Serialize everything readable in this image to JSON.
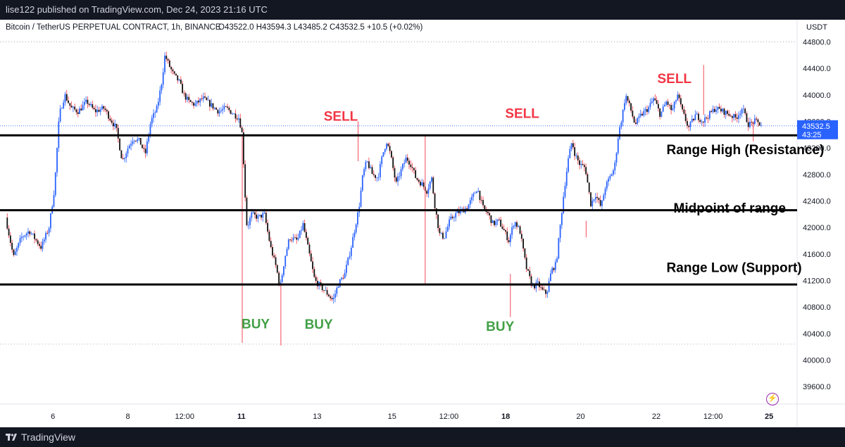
{
  "header": {
    "publish_text": "lise122 published on TradingView.com, Dec 24, 2023 21:16 UTC",
    "symbol_line": "Bitcoin / TetherUS PERPETUAL CONTRACT, 1h, BINANCE",
    "ohlc": "O43522.0  H43594.3  L43485.2  C43532.5  +10.5 (+0.02%)",
    "currency": "USDT"
  },
  "footer": {
    "brand": "TradingView"
  },
  "colors": {
    "up": "#2962ff",
    "down": "#f23645",
    "wick": "#000000",
    "buy": "#43a047",
    "sell": "#f23645",
    "line": "#000000",
    "price_tag": "#2962ff"
  },
  "chart_data": {
    "type": "candlestick",
    "title": "Bitcoin / TetherUS PERPETUAL CONTRACT, 1h, BINANCE",
    "ylim": [
      39400,
      44900
    ],
    "yticks": [
      39600,
      40000,
      40400,
      40800,
      41200,
      41600,
      42000,
      42400,
      42800,
      43200,
      43600,
      44000,
      44400,
      44800
    ],
    "ytick_labels": [
      "39600.0",
      "40000.0",
      "40400.0",
      "40800.0",
      "41200.0",
      "41600.0",
      "42000.0",
      "42400.0",
      "42800.0",
      "43200.0",
      "43600.0",
      "44000.0",
      "44400.0",
      "44800.0"
    ],
    "xticks": [
      {
        "label": "6",
        "t": 0.06,
        "bold": false
      },
      {
        "label": "8",
        "t": 0.155,
        "bold": false
      },
      {
        "label": "12:00",
        "t": 0.227,
        "bold": false
      },
      {
        "label": "11",
        "t": 0.299,
        "bold": true
      },
      {
        "label": "13",
        "t": 0.395,
        "bold": false
      },
      {
        "label": "15",
        "t": 0.49,
        "bold": false
      },
      {
        "label": "12:00",
        "t": 0.562,
        "bold": false
      },
      {
        "label": "18",
        "t": 0.634,
        "bold": true
      },
      {
        "label": "20",
        "t": 0.729,
        "bold": false
      },
      {
        "label": "22",
        "t": 0.825,
        "bold": false
      },
      {
        "label": "12:00",
        "t": 0.897,
        "bold": false
      },
      {
        "label": "25",
        "t": 0.968,
        "bold": true
      }
    ],
    "close_path": [
      [
        0.0,
        42150
      ],
      [
        0.01,
        41550
      ],
      [
        0.02,
        41850
      ],
      [
        0.03,
        41950
      ],
      [
        0.045,
        41700
      ],
      [
        0.055,
        42000
      ],
      [
        0.062,
        42600
      ],
      [
        0.068,
        43700
      ],
      [
        0.075,
        44000
      ],
      [
        0.083,
        43800
      ],
      [
        0.092,
        43750
      ],
      [
        0.103,
        43900
      ],
      [
        0.113,
        43750
      ],
      [
        0.125,
        43800
      ],
      [
        0.132,
        43650
      ],
      [
        0.14,
        43500
      ],
      [
        0.148,
        43000
      ],
      [
        0.155,
        43200
      ],
      [
        0.162,
        43350
      ],
      [
        0.17,
        43300
      ],
      [
        0.177,
        43100
      ],
      [
        0.184,
        43600
      ],
      [
        0.192,
        43800
      ],
      [
        0.198,
        44200
      ],
      [
        0.202,
        44600
      ],
      [
        0.207,
        44450
      ],
      [
        0.213,
        44300
      ],
      [
        0.22,
        44200
      ],
      [
        0.226,
        44000
      ],
      [
        0.232,
        43900
      ],
      [
        0.24,
        43850
      ],
      [
        0.25,
        43950
      ],
      [
        0.26,
        43850
      ],
      [
        0.27,
        43750
      ],
      [
        0.28,
        43800
      ],
      [
        0.29,
        43700
      ],
      [
        0.296,
        43650
      ],
      [
        0.3,
        43400
      ],
      [
        0.304,
        42400
      ],
      [
        0.306,
        42000
      ],
      [
        0.312,
        42200
      ],
      [
        0.32,
        42150
      ],
      [
        0.328,
        42200
      ],
      [
        0.336,
        41700
      ],
      [
        0.343,
        41400
      ],
      [
        0.348,
        41100
      ],
      [
        0.354,
        41550
      ],
      [
        0.36,
        41850
      ],
      [
        0.37,
        41800
      ],
      [
        0.377,
        42050
      ],
      [
        0.385,
        41600
      ],
      [
        0.392,
        41200
      ],
      [
        0.4,
        41100
      ],
      [
        0.408,
        41000
      ],
      [
        0.415,
        40900
      ],
      [
        0.422,
        41150
      ],
      [
        0.43,
        41300
      ],
      [
        0.438,
        41700
      ],
      [
        0.443,
        42000
      ],
      [
        0.448,
        42300
      ],
      [
        0.453,
        42800
      ],
      [
        0.458,
        43000
      ],
      [
        0.465,
        42800
      ],
      [
        0.472,
        42750
      ],
      [
        0.478,
        43100
      ],
      [
        0.483,
        43300
      ],
      [
        0.488,
        43100
      ],
      [
        0.495,
        42650
      ],
      [
        0.501,
        42850
      ],
      [
        0.508,
        43050
      ],
      [
        0.514,
        42950
      ],
      [
        0.52,
        42750
      ],
      [
        0.528,
        42650
      ],
      [
        0.534,
        42550
      ],
      [
        0.54,
        42750
      ],
      [
        0.544,
        42350
      ],
      [
        0.55,
        41900
      ],
      [
        0.556,
        41850
      ],
      [
        0.563,
        42100
      ],
      [
        0.57,
        42200
      ],
      [
        0.578,
        42250
      ],
      [
        0.585,
        42300
      ],
      [
        0.592,
        42450
      ],
      [
        0.598,
        42600
      ],
      [
        0.605,
        42300
      ],
      [
        0.612,
        42200
      ],
      [
        0.618,
        42050
      ],
      [
        0.625,
        42100
      ],
      [
        0.632,
        41950
      ],
      [
        0.638,
        41800
      ],
      [
        0.645,
        42100
      ],
      [
        0.652,
        41950
      ],
      [
        0.66,
        41400
      ],
      [
        0.668,
        41100
      ],
      [
        0.675,
        41150
      ],
      [
        0.68,
        41050
      ],
      [
        0.686,
        41000
      ],
      [
        0.692,
        41350
      ],
      [
        0.698,
        41450
      ],
      [
        0.703,
        42000
      ],
      [
        0.708,
        42550
      ],
      [
        0.713,
        43000
      ],
      [
        0.718,
        43300
      ],
      [
        0.722,
        43100
      ],
      [
        0.728,
        42950
      ],
      [
        0.735,
        42900
      ],
      [
        0.742,
        42350
      ],
      [
        0.748,
        42500
      ],
      [
        0.755,
        42300
      ],
      [
        0.76,
        42600
      ],
      [
        0.766,
        42750
      ],
      [
        0.772,
        42900
      ],
      [
        0.777,
        43400
      ],
      [
        0.782,
        43700
      ],
      [
        0.786,
        44000
      ],
      [
        0.792,
        43800
      ],
      [
        0.798,
        43550
      ],
      [
        0.806,
        43700
      ],
      [
        0.815,
        43800
      ],
      [
        0.822,
        43950
      ],
      [
        0.83,
        43700
      ],
      [
        0.838,
        43900
      ],
      [
        0.845,
        43750
      ],
      [
        0.852,
        44000
      ],
      [
        0.858,
        43750
      ],
      [
        0.866,
        43500
      ],
      [
        0.875,
        43700
      ],
      [
        0.884,
        43600
      ],
      [
        0.892,
        43700
      ],
      [
        0.9,
        43800
      ],
      [
        0.91,
        43750
      ],
      [
        0.918,
        43700
      ],
      [
        0.926,
        43650
      ],
      [
        0.934,
        43800
      ],
      [
        0.942,
        43550
      ],
      [
        0.95,
        43600
      ],
      [
        0.958,
        43550
      ]
    ],
    "level_lines": [
      {
        "name": "Range High (Resistance)",
        "value": 43390
      },
      {
        "name": "Midpoint of range",
        "value": 42260
      },
      {
        "name": "Range Low (Support)",
        "value": 41140
      }
    ],
    "dotted_lines": [
      44800,
      40240
    ],
    "current_price": {
      "price": "43532.5",
      "countdown": "43:25",
      "value": 43532.5
    },
    "annotations": [
      {
        "text": "SELL",
        "kind": "sell",
        "t": 0.425,
        "value": 43610
      },
      {
        "text": "SELL",
        "kind": "sell",
        "t": 0.655,
        "value": 43650
      },
      {
        "text": "SELL",
        "kind": "sell",
        "t": 0.848,
        "value": 44180
      },
      {
        "text": "BUY",
        "kind": "buy",
        "t": 0.317,
        "value": 40480
      },
      {
        "text": "BUY",
        "kind": "buy",
        "t": 0.397,
        "value": 40470
      },
      {
        "text": "BUY",
        "kind": "buy",
        "t": 0.627,
        "value": 40440
      }
    ],
    "level_labels": [
      {
        "text": "Range High (Resistance)",
        "t": 0.838,
        "value": 43180
      },
      {
        "text": "Midpoint of range",
        "t": 0.838,
        "value": 42300
      },
      {
        "text": "Range Low (Support)",
        "t": 0.838,
        "value": 41400
      }
    ]
  }
}
